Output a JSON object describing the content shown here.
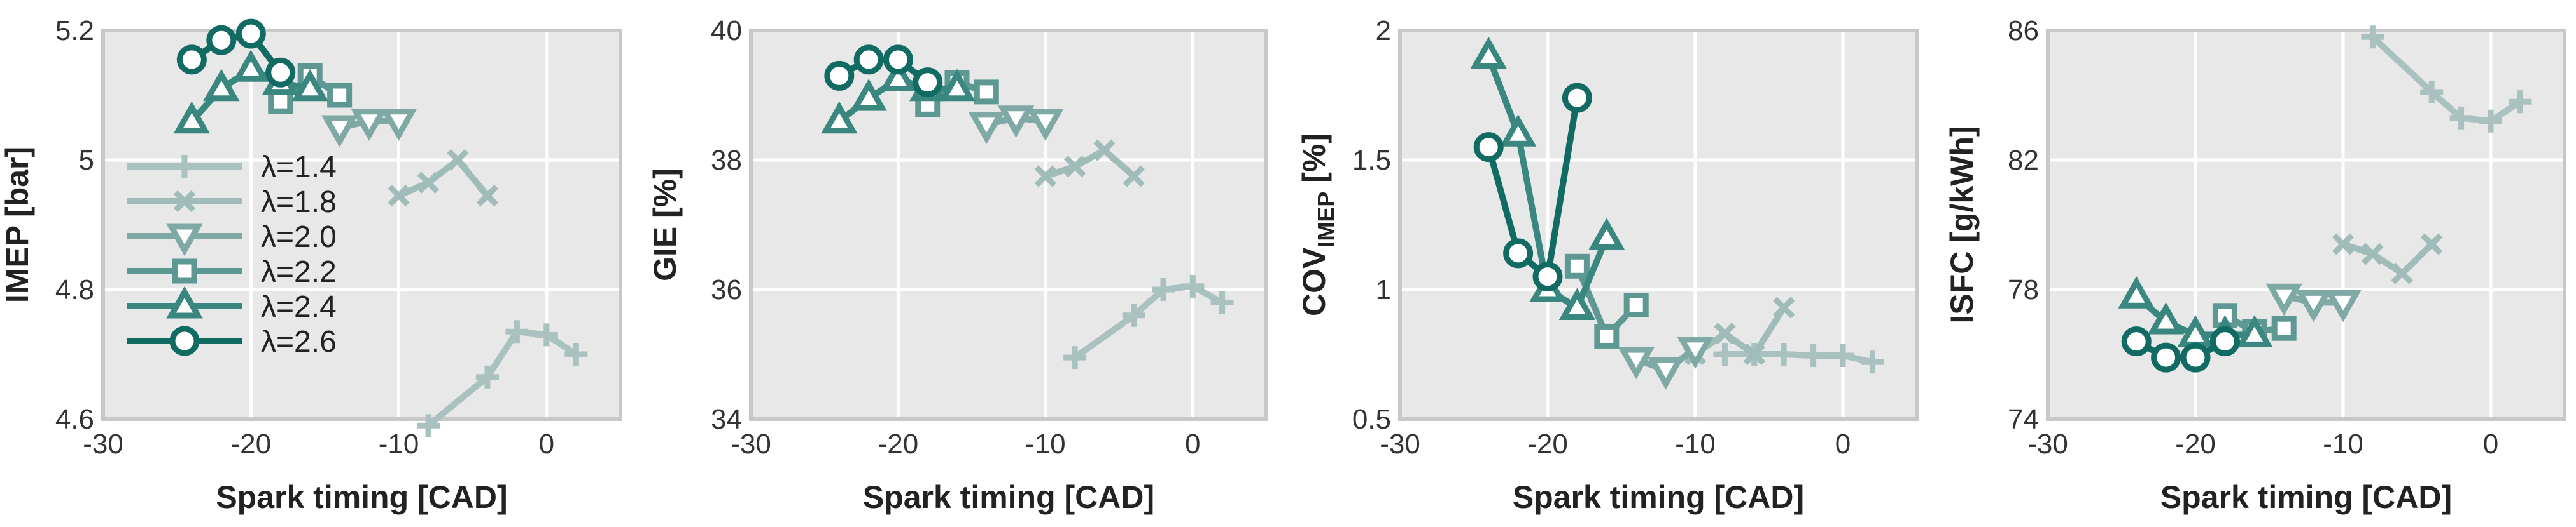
{
  "colors": {
    "background": "#e8e8e8",
    "grid": "#ffffff",
    "frame": "#c8c8c8",
    "lambda_1_4": "#a9c1bf",
    "lambda_1_8": "#a0bcb9",
    "lambda_2_0": "#7fa9a5",
    "lambda_2_2": "#5e9893",
    "lambda_2_4": "#3a8780",
    "lambda_2_6": "#126b63"
  },
  "legend": {
    "location": "left-middle of first panel",
    "entries": [
      {
        "label": "λ=1.4",
        "marker": "plus"
      },
      {
        "label": "λ=1.8",
        "marker": "x"
      },
      {
        "label": "λ=2.0",
        "marker": "triangle-down"
      },
      {
        "label": "λ=2.2",
        "marker": "square"
      },
      {
        "label": "λ=2.4",
        "marker": "triangle-up"
      },
      {
        "label": "λ=2.6",
        "marker": "circle"
      }
    ]
  },
  "chart_data": [
    {
      "type": "line",
      "ylabel_main": "IMEP [bar]",
      "ylabel_sub": "",
      "ylabel_tail": "",
      "xlabel": "Spark timing [CAD]",
      "xlim": [
        -30,
        5
      ],
      "ylim": [
        4.6,
        5.2
      ],
      "xticks": [
        -30,
        -20,
        -10,
        0
      ],
      "xtick_labels": [
        "-30",
        "-20",
        "-10",
        "0"
      ],
      "yticks": [
        4.6,
        4.8,
        5.0,
        5.2
      ],
      "ytick_labels": [
        "4.6",
        "4.8",
        "5",
        "5.2"
      ],
      "series": [
        {
          "name": "λ=1.4",
          "marker": "plus",
          "x": [
            -8,
            -4,
            -2,
            0,
            2
          ],
          "y": [
            4.59,
            4.665,
            4.735,
            4.73,
            4.7
          ]
        },
        {
          "name": "λ=1.8",
          "marker": "x",
          "x": [
            -10,
            -8,
            -6,
            -4
          ],
          "y": [
            4.945,
            4.965,
            5.0,
            4.945
          ]
        },
        {
          "name": "λ=2.0",
          "marker": "triangle-down",
          "x": [
            -14,
            -12,
            -10
          ],
          "y": [
            5.05,
            5.06,
            5.06
          ]
        },
        {
          "name": "λ=2.2",
          "marker": "square",
          "x": [
            -18,
            -16,
            -14
          ],
          "y": [
            5.09,
            5.13,
            5.1
          ]
        },
        {
          "name": "λ=2.4",
          "marker": "triangle-up",
          "x": [
            -24,
            -22,
            -20,
            -18,
            -16
          ],
          "y": [
            5.06,
            5.11,
            5.14,
            5.12,
            5.11
          ]
        },
        {
          "name": "λ=2.6",
          "marker": "circle",
          "x": [
            -24,
            -22,
            -20,
            -18
          ],
          "y": [
            5.155,
            5.185,
            5.195,
            5.135
          ]
        }
      ]
    },
    {
      "type": "line",
      "ylabel_main": "GIE [%]",
      "ylabel_sub": "",
      "ylabel_tail": "",
      "xlabel": "Spark timing [CAD]",
      "xlim": [
        -30,
        5
      ],
      "ylim": [
        34,
        40
      ],
      "xticks": [
        -30,
        -20,
        -10,
        0
      ],
      "xtick_labels": [
        "-30",
        "-20",
        "-10",
        "0"
      ],
      "yticks": [
        34,
        36,
        38,
        40
      ],
      "ytick_labels": [
        "34",
        "36",
        "38",
        "40"
      ],
      "series": [
        {
          "name": "λ=1.4",
          "marker": "plus",
          "x": [
            -8,
            -4,
            -2,
            0,
            2
          ],
          "y": [
            34.95,
            35.6,
            36.0,
            36.05,
            35.8
          ]
        },
        {
          "name": "λ=1.8",
          "marker": "x",
          "x": [
            -10,
            -8,
            -6,
            -4
          ],
          "y": [
            37.75,
            37.9,
            38.15,
            37.75
          ]
        },
        {
          "name": "λ=2.0",
          "marker": "triangle-down",
          "x": [
            -14,
            -12,
            -10
          ],
          "y": [
            38.55,
            38.65,
            38.6
          ]
        },
        {
          "name": "λ=2.2",
          "marker": "square",
          "x": [
            -18,
            -16,
            -14
          ],
          "y": [
            38.85,
            39.2,
            39.05
          ]
        },
        {
          "name": "λ=2.4",
          "marker": "triangle-up",
          "x": [
            -24,
            -22,
            -20,
            -18,
            -16
          ],
          "y": [
            38.6,
            38.95,
            39.25,
            39.1,
            39.1
          ]
        },
        {
          "name": "λ=2.6",
          "marker": "circle",
          "x": [
            -24,
            -22,
            -20,
            -18
          ],
          "y": [
            39.3,
            39.55,
            39.55,
            39.2
          ]
        }
      ]
    },
    {
      "type": "line",
      "ylabel_main": "COV",
      "ylabel_sub": "IMEP",
      "ylabel_tail": " [%]",
      "xlabel": "Spark timing [CAD]",
      "xlim": [
        -30,
        5
      ],
      "ylim": [
        0.5,
        2.0
      ],
      "xticks": [
        -30,
        -20,
        -10,
        0
      ],
      "xtick_labels": [
        "-30",
        "-20",
        "-10",
        "0"
      ],
      "yticks": [
        0.5,
        1.0,
        1.5,
        2.0
      ],
      "ytick_labels": [
        "0.5",
        "1",
        "1.5",
        "2"
      ],
      "series": [
        {
          "name": "λ=1.4",
          "marker": "plus",
          "x": [
            -8,
            -6,
            -4,
            -2,
            0,
            2
          ],
          "y": [
            0.75,
            0.75,
            0.75,
            0.745,
            0.745,
            0.72
          ]
        },
        {
          "name": "λ=1.8",
          "marker": "x",
          "x": [
            -10,
            -8,
            -6,
            -4
          ],
          "y": [
            0.75,
            0.83,
            0.75,
            0.93
          ]
        },
        {
          "name": "λ=2.0",
          "marker": "triangle-down",
          "x": [
            -14,
            -12,
            -10
          ],
          "y": [
            0.73,
            0.69,
            0.77
          ]
        },
        {
          "name": "λ=2.2",
          "marker": "square",
          "x": [
            -18,
            -16,
            -14
          ],
          "y": [
            1.09,
            0.82,
            0.94
          ]
        },
        {
          "name": "λ=2.4",
          "marker": "triangle-up",
          "x": [
            -24,
            -22,
            -20,
            -18,
            -16
          ],
          "y": [
            1.9,
            1.6,
            1.0,
            0.93,
            1.2
          ]
        },
        {
          "name": "λ=2.6",
          "marker": "circle",
          "x": [
            -24,
            -22,
            -20,
            -18
          ],
          "y": [
            1.55,
            1.14,
            1.05,
            1.74
          ]
        }
      ]
    },
    {
      "type": "line",
      "ylabel_main": "ISFC [g/kWh]",
      "ylabel_sub": "",
      "ylabel_tail": "",
      "xlabel": "Spark timing [CAD]",
      "xlim": [
        -30,
        5
      ],
      "ylim": [
        74,
        86
      ],
      "xticks": [
        -30,
        -20,
        -10,
        0
      ],
      "xtick_labels": [
        "-30",
        "-20",
        "-10",
        "0"
      ],
      "yticks": [
        74,
        78,
        82,
        86
      ],
      "ytick_labels": [
        "74",
        "78",
        "82",
        "86"
      ],
      "series": [
        {
          "name": "λ=1.4",
          "marker": "plus",
          "x": [
            -8,
            -4,
            -2,
            0,
            2
          ],
          "y": [
            85.8,
            84.1,
            83.3,
            83.2,
            83.8
          ]
        },
        {
          "name": "λ=1.8",
          "marker": "x",
          "x": [
            -10,
            -8,
            -6,
            -4
          ],
          "y": [
            79.4,
            79.1,
            78.5,
            79.4
          ]
        },
        {
          "name": "λ=2.0",
          "marker": "triangle-down",
          "x": [
            -14,
            -12,
            -10
          ],
          "y": [
            77.8,
            77.6,
            77.6
          ]
        },
        {
          "name": "λ=2.2",
          "marker": "square",
          "x": [
            -18,
            -16,
            -14
          ],
          "y": [
            77.2,
            76.7,
            76.8
          ]
        },
        {
          "name": "λ=2.4",
          "marker": "triangle-up",
          "x": [
            -24,
            -22,
            -20,
            -18,
            -16
          ],
          "y": [
            77.8,
            77.0,
            76.6,
            76.6,
            76.6
          ]
        },
        {
          "name": "λ=2.6",
          "marker": "circle",
          "x": [
            -24,
            -22,
            -20,
            -18
          ],
          "y": [
            76.4,
            75.9,
            75.9,
            76.4
          ]
        }
      ]
    }
  ]
}
